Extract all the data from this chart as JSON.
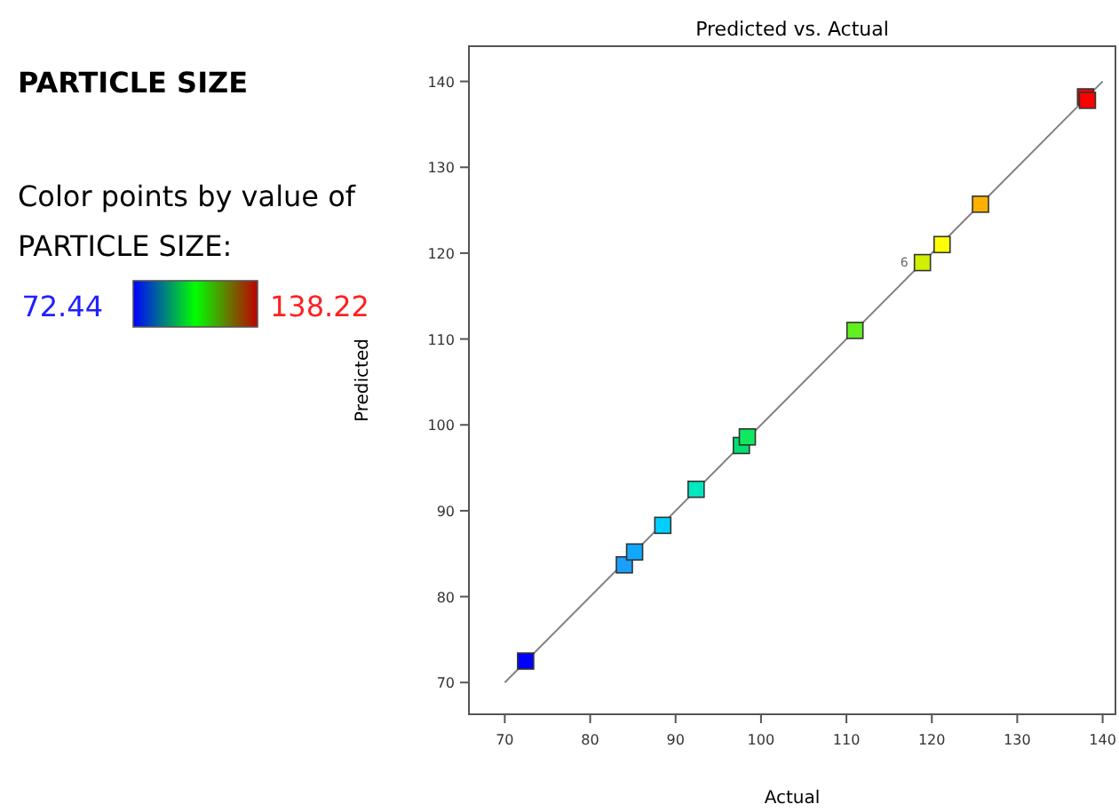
{
  "chart_data": {
    "type": "scatter",
    "title": "Predicted vs. Actual",
    "subtitle": "PARTICLE SIZE",
    "xlabel": "Actual",
    "ylabel": "Predicted",
    "clabel": "Color points by value of PARTICLE SIZE:",
    "series": [
      {
        "type": "line",
        "color": "#808080",
        "x": [
          70,
          140
        ],
        "values": [
          70,
          140
        ]
      },
      {
        "marker": "square",
        "x": [
          72.44,
          84.0,
          85.2,
          88.5,
          92.4,
          97.7,
          98.4,
          111.0,
          118.9,
          121.2,
          125.7,
          138.0,
          138.22
        ],
        "values": [
          72.5,
          83.7,
          85.2,
          88.3,
          92.5,
          97.6,
          98.6,
          111.0,
          118.9,
          121.0,
          125.7,
          138.2,
          137.8
        ],
        "colors": [
          "#0000ff",
          "#1a9fff",
          "#10a8ff",
          "#00d0ff",
          "#00e8c0",
          "#00e070",
          "#10e860",
          "#60f020",
          "#d0f000",
          "#ffff00",
          "#ffb000",
          "#ff0000",
          "#ff0000"
        ]
      }
    ],
    "annotations": [
      "72.44",
      "138.22",
      {
        "text": "6",
        "x": 118.9,
        "y": 118.9
      }
    ],
    "xlim": [
      65.8,
      141.5
    ],
    "ylim": [
      66.3,
      144.1
    ],
    "xticks": [
      70,
      80,
      90,
      100,
      110,
      120,
      130,
      140
    ],
    "yticks": [
      70,
      80,
      90,
      100,
      110,
      120,
      130,
      140
    ],
    "grid": false
  }
}
